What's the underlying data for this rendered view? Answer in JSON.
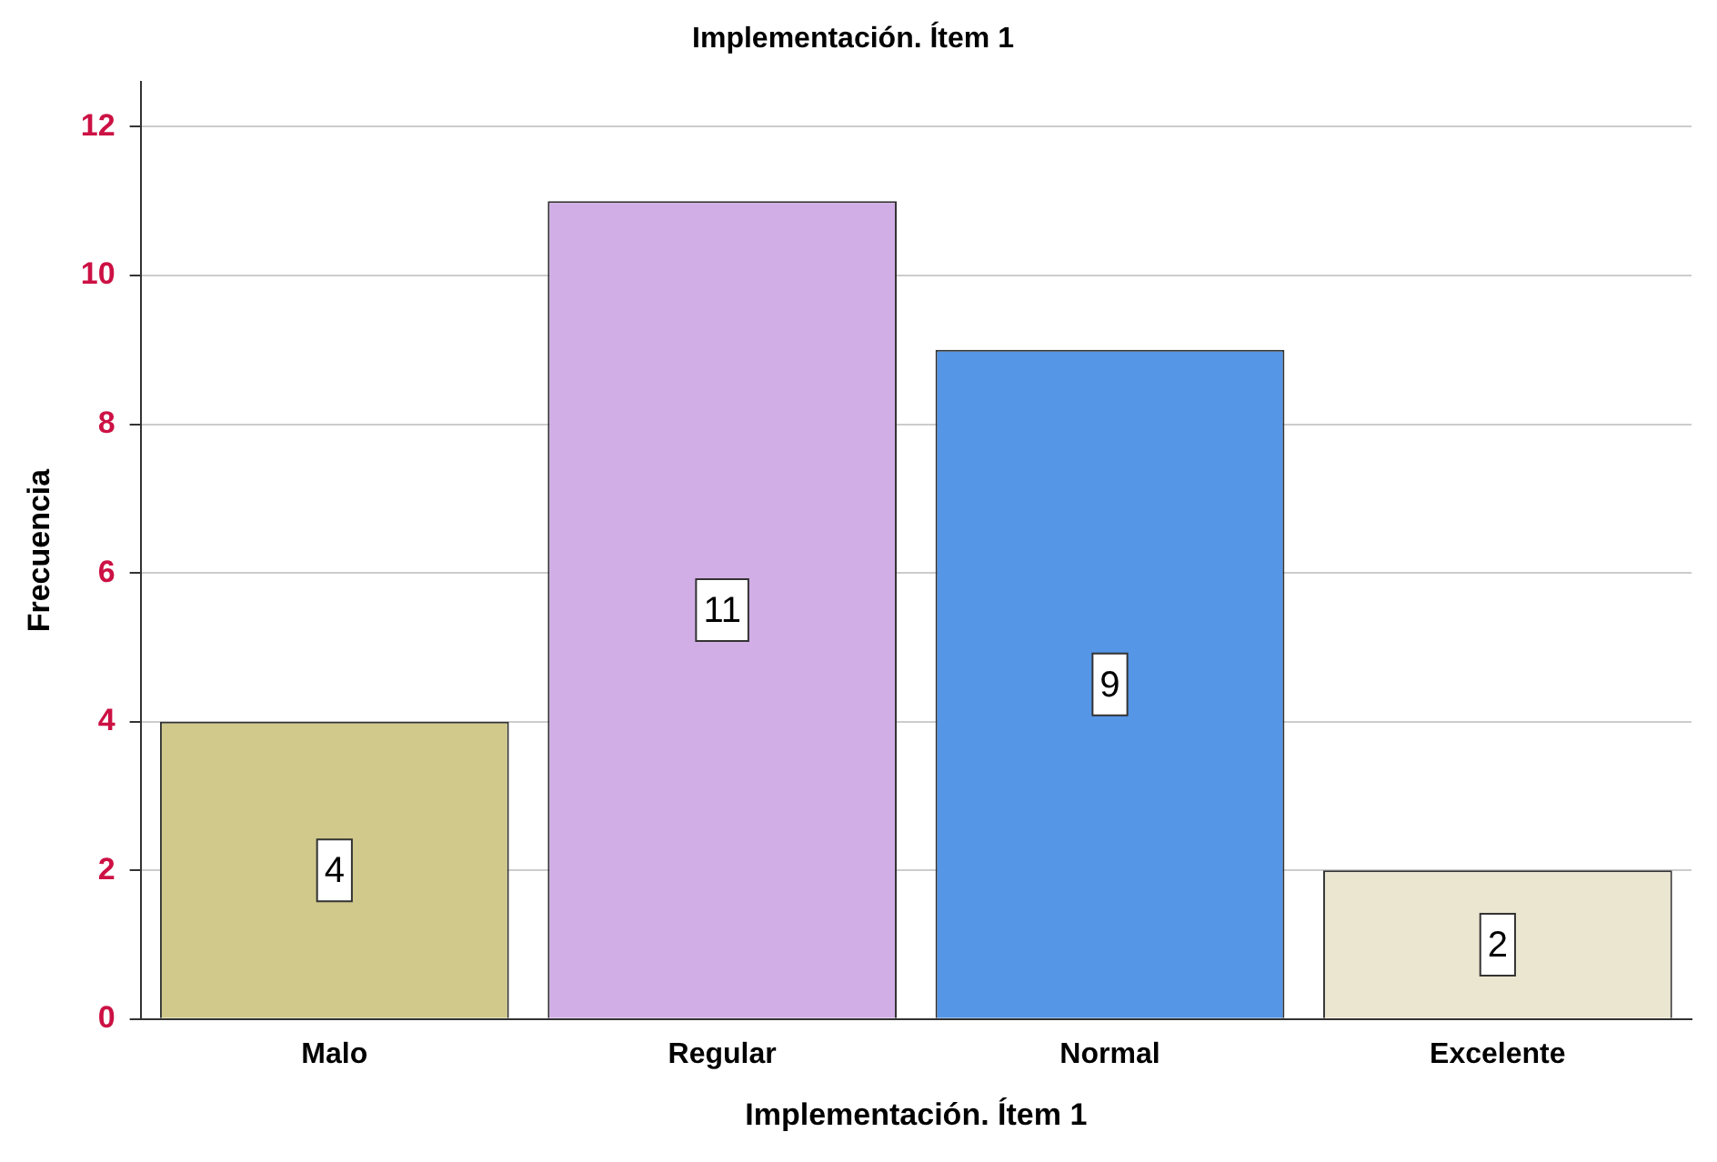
{
  "chart_data": {
    "type": "bar",
    "title": "Implementación. Ítem 1",
    "xlabel": "Implementación. Ítem 1",
    "ylabel": "Frecuencia",
    "categories": [
      "Malo",
      "Regular",
      "Normal",
      "Excelente"
    ],
    "values": [
      4,
      11,
      9,
      2
    ],
    "colors": [
      "#d0c98b",
      "#d1aee6",
      "#5596e6",
      "#ebe6d0"
    ],
    "ylim": [
      0,
      12.6
    ],
    "yticks": [
      0,
      2,
      4,
      6,
      8,
      10,
      12
    ],
    "grid": "y",
    "data_labels": true,
    "legend": false
  }
}
